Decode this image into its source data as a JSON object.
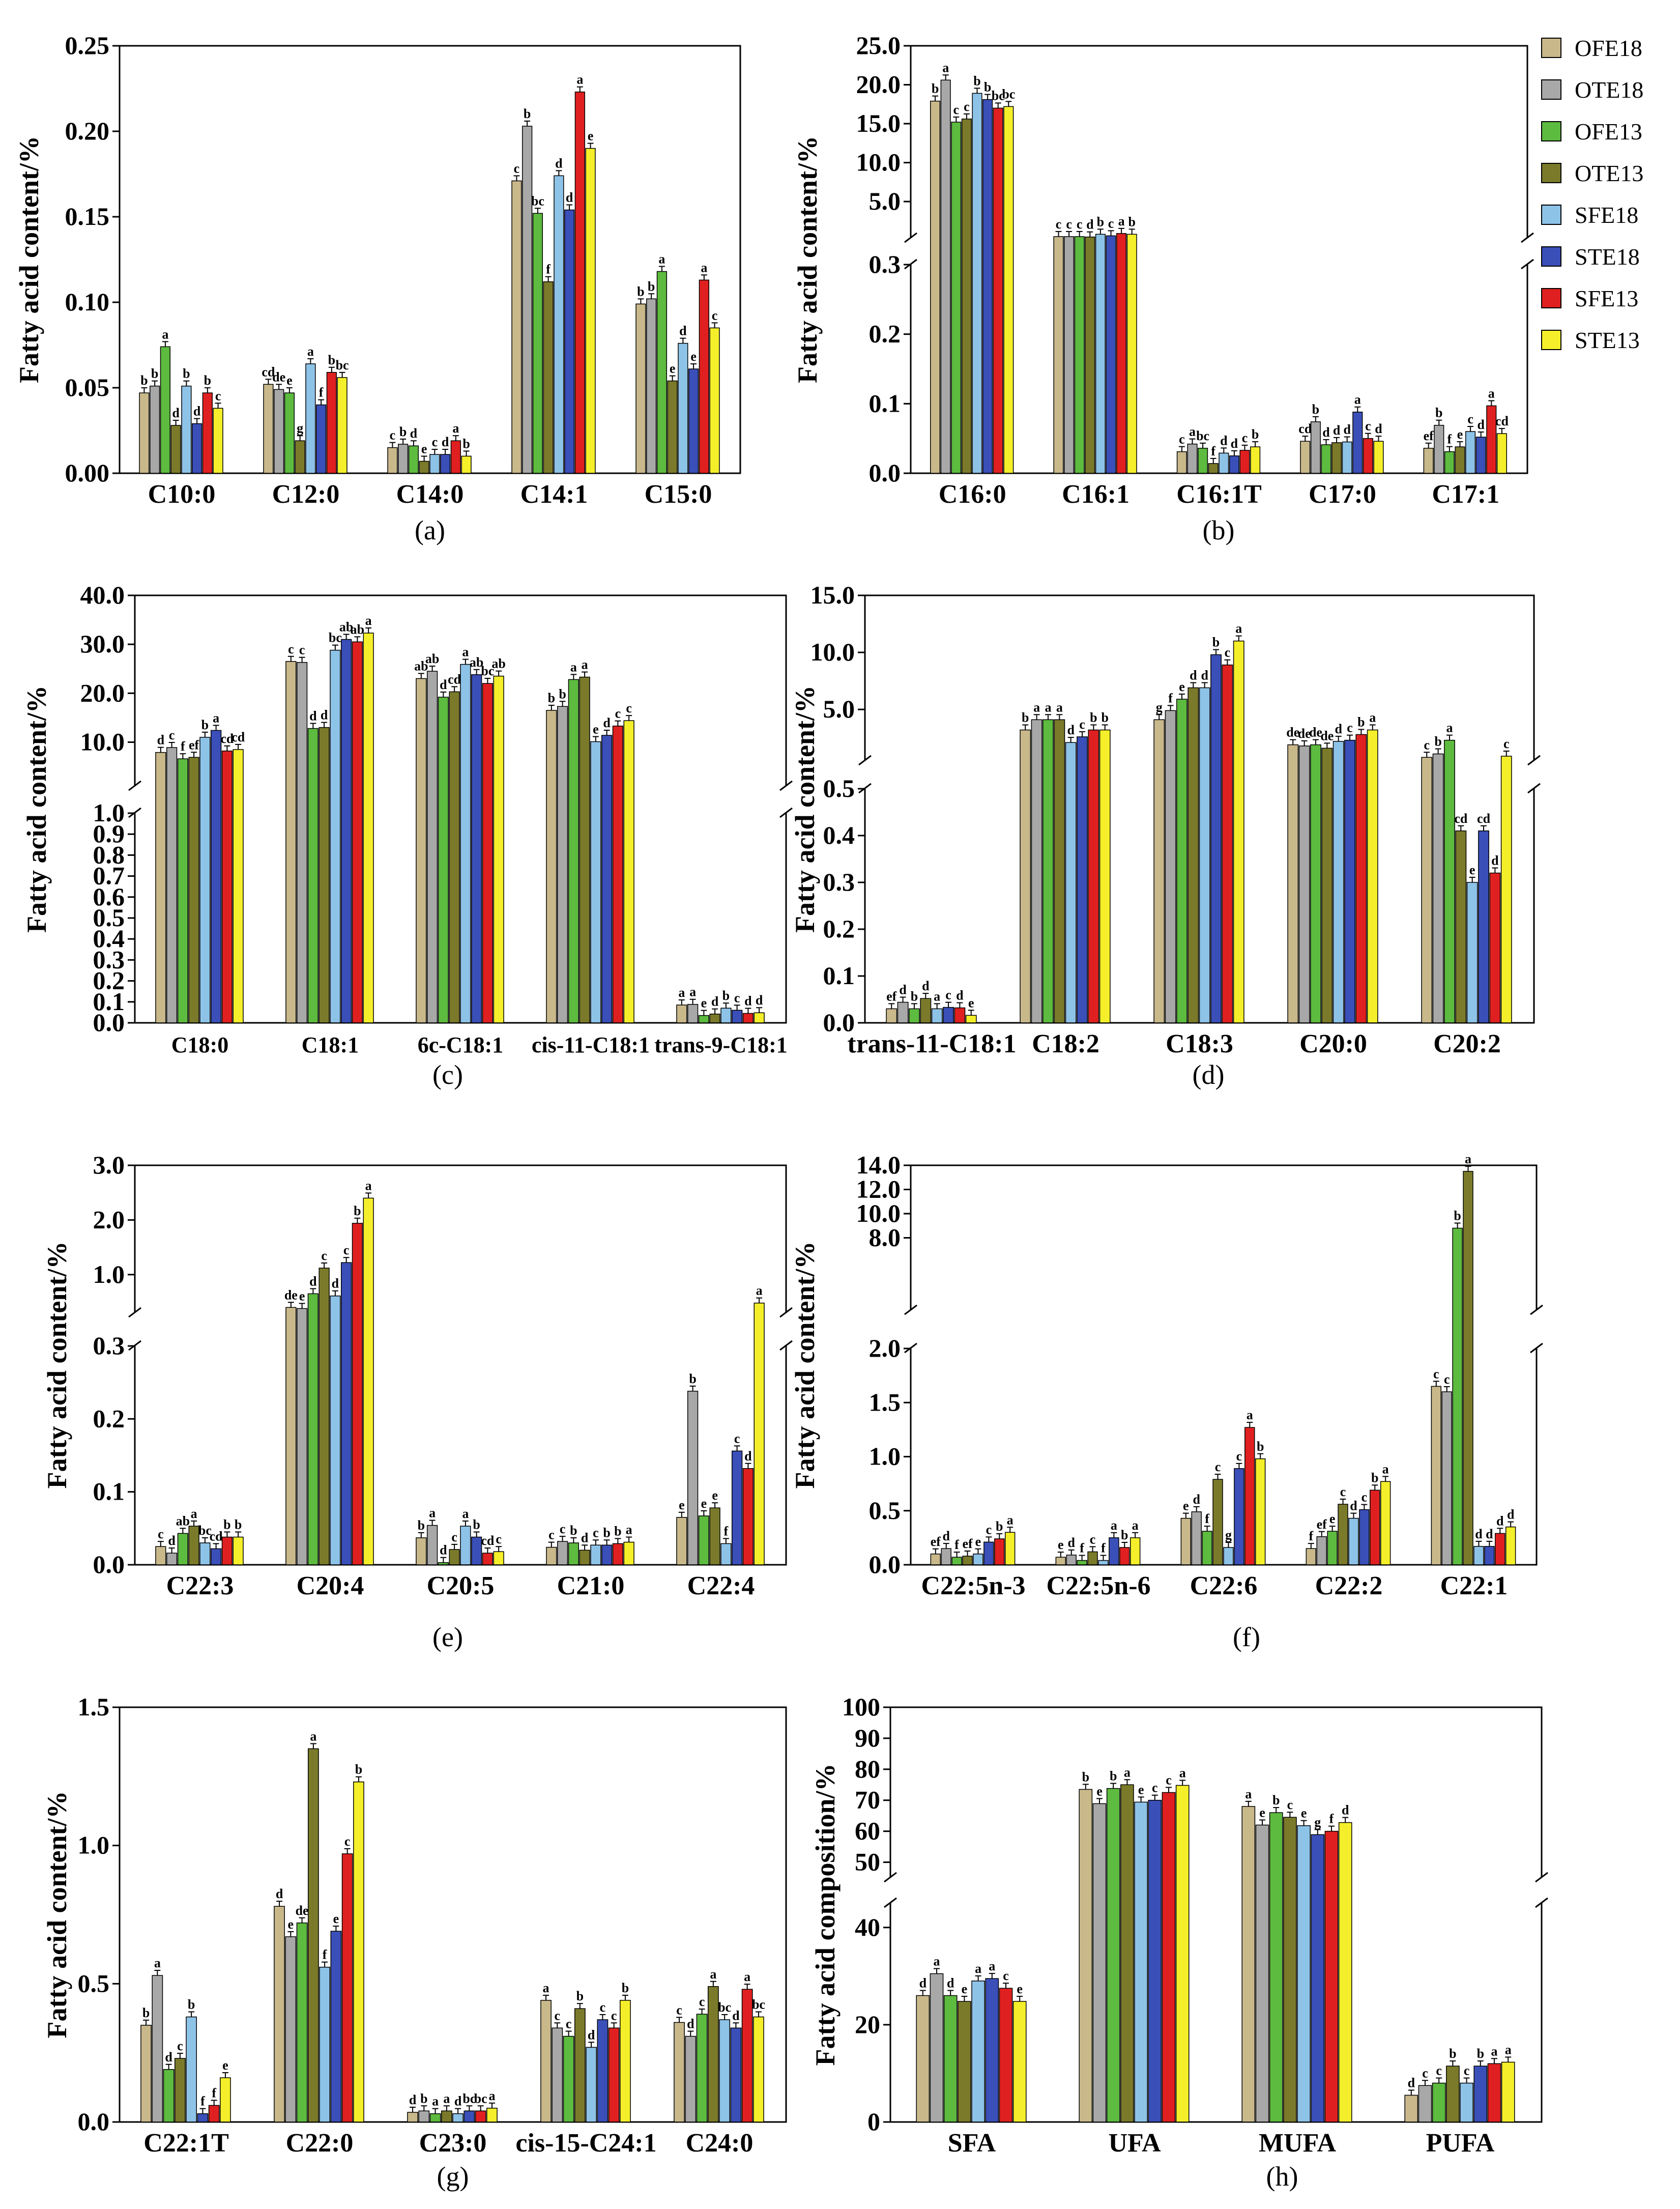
{
  "chart_data": {
    "type": "bar",
    "series_names": [
      "OFE18",
      "OTE18",
      "OFE13",
      "OTE13",
      "SFE18",
      "STE18",
      "SFE13",
      "STE13"
    ],
    "colors": [
      "#c8b88a",
      "#a8a8a8",
      "#5dbb3f",
      "#7a7a2a",
      "#8ec3e8",
      "#3a4fb8",
      "#e02020",
      "#f4ef2a"
    ],
    "legend": {
      "placement": "right of panel (b)",
      "entries": [
        "OFE18",
        "OTE18",
        "OFE13",
        "OTE13",
        "SFE18",
        "STE18",
        "SFE13",
        "STE13"
      ]
    },
    "panels": [
      {
        "label": "(a)",
        "ylabel": "Fatty acid content/%",
        "ylim": [
          0,
          0.25
        ],
        "yticks": [
          "0.00",
          "0.05",
          "0.10",
          "0.15",
          "0.20",
          "0.25"
        ],
        "categories": [
          "C10:0",
          "C12:0",
          "C14:0",
          "C14:1",
          "C15:0"
        ],
        "values": [
          [
            0.047,
            0.051,
            0.074,
            0.028,
            0.051,
            0.029,
            0.047,
            0.038
          ],
          [
            0.052,
            0.049,
            0.047,
            0.019,
            0.064,
            0.04,
            0.059,
            0.056
          ],
          [
            0.015,
            0.017,
            0.016,
            0.007,
            0.011,
            0.011,
            0.019,
            0.01
          ],
          [
            0.171,
            0.203,
            0.152,
            0.112,
            0.174,
            0.154,
            0.223,
            0.19
          ],
          [
            0.099,
            0.102,
            0.118,
            0.054,
            0.076,
            0.061,
            0.113,
            0.085
          ]
        ],
        "letters": [
          [
            "b",
            "b",
            "a",
            "d",
            "b",
            "d",
            "b",
            "c"
          ],
          [
            "cd",
            "de",
            "e",
            "g",
            "a",
            "f",
            "b",
            "bc"
          ],
          [
            "c",
            "b",
            "d",
            "e",
            "c",
            "d",
            "a",
            "b"
          ],
          [
            "c",
            "b",
            "bc",
            "f",
            "d",
            "d",
            "a",
            "e"
          ],
          [
            "b",
            "b",
            "a",
            "e",
            "d",
            "e",
            "a",
            "c"
          ]
        ]
      },
      {
        "label": "(b)",
        "ylabel": "Fatty acid content/%",
        "broken": true,
        "lower": [
          0,
          0.3
        ],
        "upper": [
          0.3,
          25.0
        ],
        "lower_ticks": [
          "0.0",
          "0.1",
          "0.2",
          "0.3"
        ],
        "upper_ticks": [
          "5.0",
          "10.0",
          "15.0",
          "20.0",
          "25.0"
        ],
        "categories": [
          "C16:0",
          "C16:1",
          "C16:1T",
          "C17:0",
          "C17:1"
        ],
        "values": [
          [
            17.9,
            20.6,
            15.2,
            15.6,
            18.9,
            18.1,
            17.0,
            17.2
          ],
          [
            0.5,
            0.5,
            0.5,
            0.45,
            0.8,
            0.6,
            0.9,
            0.8
          ],
          [
            0.031,
            0.042,
            0.036,
            0.014,
            0.029,
            0.025,
            0.033,
            0.038
          ],
          [
            0.046,
            0.074,
            0.041,
            0.044,
            0.045,
            0.088,
            0.05,
            0.046
          ],
          [
            0.036,
            0.069,
            0.031,
            0.038,
            0.06,
            0.052,
            0.097,
            0.057
          ]
        ],
        "letters": [
          [
            "b",
            "a",
            "c",
            "c",
            "b",
            "b",
            "bc",
            "bc"
          ],
          [
            "c",
            "c",
            "c",
            "d",
            "b",
            "c",
            "a",
            "b"
          ],
          [
            "c",
            "a",
            "bc",
            "f",
            "d",
            "d",
            "c",
            "b"
          ],
          [
            "cd",
            "b",
            "d",
            "d",
            "d",
            "a",
            "c",
            "d"
          ],
          [
            "ef",
            "b",
            "f",
            "e",
            "c",
            "d",
            "a",
            "cd"
          ]
        ]
      },
      {
        "label": "(c)",
        "ylabel": "Fatty acid content/%",
        "broken": true,
        "lower": [
          0,
          1.0
        ],
        "upper": [
          1.0,
          40.0
        ],
        "lower_ticks": [
          "0.0",
          "0.1",
          "0.2",
          "0.3",
          "0.4",
          "0.5",
          "0.6",
          "0.7",
          "0.8",
          "0.9",
          "1.0"
        ],
        "upper_ticks": [
          "10.0",
          "20.0",
          "30.0",
          "40.0"
        ],
        "categories": [
          "C18:0",
          "C18:1",
          "6c-C18:1",
          "cis-11-C18:1",
          "trans-9-C18:1"
        ],
        "values": [
          [
            7.9,
            8.9,
            6.6,
            6.9,
            11.0,
            12.4,
            8.2,
            8.5
          ],
          [
            26.5,
            26.3,
            12.8,
            13.0,
            28.8,
            31.0,
            30.5,
            32.3
          ],
          [
            23.0,
            24.5,
            19.2,
            20.3,
            25.9,
            23.8,
            22.0,
            23.5
          ],
          [
            16.5,
            17.3,
            22.8,
            23.3,
            10.1,
            11.4,
            13.3,
            14.4
          ],
          [
            0.085,
            0.088,
            0.035,
            0.042,
            0.07,
            0.06,
            0.045,
            0.048
          ]
        ],
        "letters": [
          [
            "d",
            "c",
            "f",
            "ef",
            "b",
            "a",
            "cd",
            "cd"
          ],
          [
            "c",
            "c",
            "d",
            "d",
            "bc",
            "ab",
            "ab",
            "a"
          ],
          [
            "ab",
            "ab",
            "d",
            "cd",
            "a",
            "ab",
            "bc",
            "ab"
          ],
          [
            "b",
            "b",
            "a",
            "a",
            "e",
            "d",
            "c",
            "c"
          ],
          [
            "a",
            "a",
            "e",
            "d",
            "b",
            "c",
            "d",
            "d"
          ]
        ]
      },
      {
        "label": "(d)",
        "ylabel": "Fatty acid content/%",
        "broken": true,
        "lower": [
          0,
          0.5
        ],
        "upper": [
          0.5,
          15.0
        ],
        "lower_ticks": [
          "0.0",
          "0.1",
          "0.2",
          "0.3",
          "0.4",
          "0.5"
        ],
        "upper_ticks": [
          "5.0",
          "10.0",
          "15.0"
        ],
        "categories": [
          "trans-11-C18:1",
          "C18:2",
          "C18:3",
          "C20:0",
          "C20:2"
        ],
        "values": [
          [
            0.03,
            0.044,
            0.03,
            0.052,
            0.03,
            0.033,
            0.032,
            0.016
          ],
          [
            3.2,
            4.1,
            4.1,
            4.1,
            2.1,
            2.6,
            3.2,
            3.2
          ],
          [
            4.1,
            4.9,
            5.9,
            6.9,
            6.9,
            9.8,
            8.9,
            11.0
          ],
          [
            1.9,
            1.8,
            1.9,
            1.6,
            2.2,
            2.3,
            2.8,
            3.2
          ],
          [
            0.8,
            1.1,
            2.3,
            0.41,
            0.3,
            0.41,
            0.32,
            0.9
          ]
        ],
        "letters": [
          [
            "ef",
            "d",
            "b",
            "d",
            "a",
            "c",
            "d",
            "e"
          ],
          [
            "b",
            "a",
            "a",
            "a",
            "d",
            "c",
            "b",
            "b"
          ],
          [
            "g",
            "f",
            "e",
            "d",
            "d",
            "b",
            "c",
            "a"
          ],
          [
            "de",
            "de",
            "de",
            "de",
            "d",
            "c",
            "b",
            "a"
          ],
          [
            "c",
            "b",
            "a",
            "cd",
            "e",
            "cd",
            "d",
            "c"
          ]
        ]
      },
      {
        "label": "(e)",
        "ylabel": "Fatty acid content/%",
        "broken": true,
        "lower": [
          0,
          0.3
        ],
        "upper": [
          0.3,
          3.0
        ],
        "lower_ticks": [
          "0.0",
          "0.1",
          "0.2",
          "0.3"
        ],
        "upper_ticks": [
          "1.0",
          "2.0",
          "3.0"
        ],
        "categories": [
          "C22:3",
          "C20:4",
          "C20:5",
          "C21:0",
          "C22:4"
        ],
        "values": [
          [
            0.025,
            0.016,
            0.043,
            0.053,
            0.03,
            0.022,
            0.038,
            0.038
          ],
          [
            0.4,
            0.38,
            0.65,
            1.12,
            0.61,
            1.22,
            1.94,
            2.4
          ],
          [
            0.037,
            0.054,
            0.003,
            0.021,
            0.053,
            0.038,
            0.016,
            0.018
          ],
          [
            0.024,
            0.032,
            0.03,
            0.02,
            0.027,
            0.027,
            0.029,
            0.031
          ],
          [
            0.065,
            0.238,
            0.067,
            0.078,
            0.029,
            0.156,
            0.132,
            0.48
          ]
        ],
        "letters": [
          [
            "c",
            "d",
            "ab",
            "a",
            "bc",
            "cd",
            "b",
            "b"
          ],
          [
            "de",
            "e",
            "d",
            "c",
            "d",
            "c",
            "b",
            "a"
          ],
          [
            "b",
            "a",
            "d",
            "c",
            "a",
            "b",
            "cd",
            "c"
          ],
          [
            "c",
            "c",
            "b",
            "d",
            "c",
            "b",
            "b",
            "a"
          ],
          [
            "e",
            "b",
            "e",
            "e",
            "f",
            "c",
            "d",
            "a"
          ]
        ]
      },
      {
        "label": "(f)",
        "ylabel": "Fatty acid content/%",
        "broken": true,
        "lower": [
          0,
          2.0
        ],
        "upper": [
          2.0,
          14.0
        ],
        "lower_ticks": [
          "0.0",
          "0.5",
          "1.0",
          "1.5",
          "2.0"
        ],
        "upper_ticks": [
          "8.0",
          "10.0",
          "12.0",
          "14.0"
        ],
        "categories": [
          "C22:5n-3",
          "C22:5n-6",
          "C22:6",
          "C22:2",
          "C22:1"
        ],
        "values": [
          [
            0.1,
            0.15,
            0.07,
            0.08,
            0.1,
            0.21,
            0.24,
            0.3
          ],
          [
            0.07,
            0.09,
            0.04,
            0.12,
            0.04,
            0.25,
            0.16,
            0.25
          ],
          [
            0.43,
            0.49,
            0.31,
            0.79,
            0.16,
            0.89,
            1.27,
            0.98
          ],
          [
            0.15,
            0.26,
            0.31,
            0.56,
            0.43,
            0.51,
            0.69,
            0.77
          ],
          [
            1.65,
            1.6,
            8.8,
            13.5,
            0.17,
            0.17,
            0.29,
            0.35
          ]
        ],
        "letters": [
          [
            "ef",
            "d",
            "f",
            "ef",
            "e",
            "c",
            "b",
            "a"
          ],
          [
            "e",
            "d",
            "f",
            "c",
            "f",
            "a",
            "b",
            "a"
          ],
          [
            "e",
            "d",
            "f",
            "c",
            "g",
            "c",
            "a",
            "b"
          ],
          [
            "f",
            "ef",
            "e",
            "c",
            "d",
            "c",
            "b",
            "a"
          ],
          [
            "c",
            "c",
            "b",
            "a",
            "d",
            "d",
            "d",
            "d"
          ]
        ]
      },
      {
        "label": "(g)",
        "ylabel": "Fatty acid content/%",
        "ylim": [
          0,
          1.5
        ],
        "yticks": [
          "0.0",
          "0.5",
          "1.0",
          "1.5"
        ],
        "categories": [
          "C22:1T",
          "C22:0",
          "C23:0",
          "cis-15-C24:1",
          "C24:0"
        ],
        "values": [
          [
            0.35,
            0.53,
            0.19,
            0.23,
            0.38,
            0.03,
            0.06,
            0.16
          ],
          [
            0.78,
            0.67,
            0.72,
            1.35,
            0.56,
            0.69,
            0.97,
            1.23
          ],
          [
            0.035,
            0.04,
            0.03,
            0.04,
            0.03,
            0.04,
            0.04,
            0.05
          ],
          [
            0.44,
            0.34,
            0.31,
            0.41,
            0.27,
            0.37,
            0.34,
            0.44
          ],
          [
            0.36,
            0.31,
            0.39,
            0.49,
            0.37,
            0.34,
            0.48,
            0.38
          ]
        ],
        "letters": [
          [
            "b",
            "a",
            "d",
            "c",
            "b",
            "f",
            "f",
            "e"
          ],
          [
            "d",
            "e",
            "de",
            "a",
            "f",
            "e",
            "c",
            "b"
          ],
          [
            "d",
            "b",
            "a",
            "a",
            "d",
            "bc",
            "bc",
            "a"
          ],
          [
            "a",
            "c",
            "c",
            "b",
            "d",
            "c",
            "c",
            "b"
          ],
          [
            "c",
            "d",
            "c",
            "a",
            "bc",
            "d",
            "a",
            "bc"
          ]
        ]
      },
      {
        "label": "(h)",
        "ylabel": "Fatty acid composition/%",
        "broken": true,
        "lower": [
          0,
          45
        ],
        "upper": [
          45,
          100
        ],
        "lower_ticks": [
          "0",
          "20",
          "40"
        ],
        "upper_ticks": [
          "50",
          "60",
          "70",
          "80",
          "90",
          "100"
        ],
        "categories": [
          "SFA",
          "UFA",
          "MUFA",
          "PUFA"
        ],
        "values": [
          [
            26.0,
            30.5,
            26.0,
            24.8,
            29.0,
            29.5,
            27.5,
            24.8
          ],
          [
            73.5,
            68.9,
            73.8,
            75.0,
            69.4,
            70.0,
            72.5,
            74.8
          ],
          [
            68.0,
            62.0,
            66.0,
            64.5,
            61.8,
            58.9,
            60.0,
            62.8
          ],
          [
            5.5,
            7.5,
            8.0,
            11.5,
            8.0,
            11.5,
            12.0,
            12.3
          ]
        ],
        "letters": [
          [
            "d",
            "a",
            "d",
            "e",
            "a",
            "a",
            "c",
            "e"
          ],
          [
            "b",
            "e",
            "b",
            "a",
            "e",
            "c",
            "c",
            "a"
          ],
          [
            "a",
            "e",
            "b",
            "c",
            "e",
            "g",
            "f",
            "d"
          ],
          [
            "d",
            "c",
            "c",
            "b",
            "c",
            "b",
            "a",
            "a"
          ]
        ]
      }
    ]
  }
}
